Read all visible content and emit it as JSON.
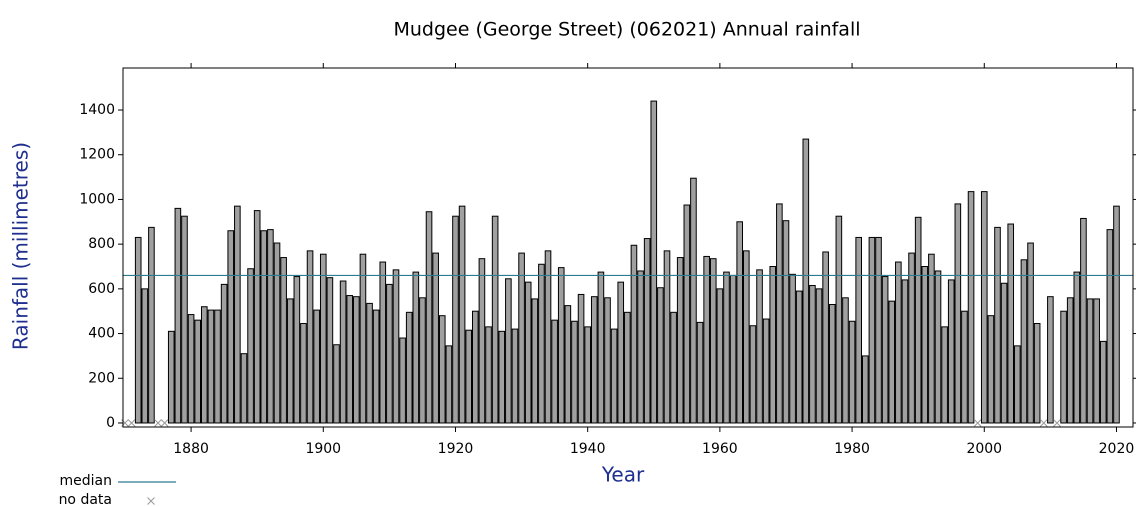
{
  "chart_data": {
    "type": "bar",
    "title": "Mudgee (George Street) (062021) Annual rainfall",
    "x_label": "Year",
    "y_label": "Rainfall (millimetres)",
    "x": [
      1870,
      1871,
      1872,
      1873,
      1874,
      1875,
      1876,
      1877,
      1878,
      1879,
      1880,
      1881,
      1882,
      1883,
      1884,
      1885,
      1886,
      1887,
      1888,
      1889,
      1890,
      1891,
      1892,
      1893,
      1894,
      1895,
      1896,
      1897,
      1898,
      1899,
      1900,
      1901,
      1902,
      1903,
      1904,
      1905,
      1906,
      1907,
      1908,
      1909,
      1910,
      1911,
      1912,
      1913,
      1914,
      1915,
      1916,
      1917,
      1918,
      1919,
      1920,
      1921,
      1922,
      1923,
      1924,
      1925,
      1926,
      1927,
      1928,
      1929,
      1930,
      1931,
      1932,
      1933,
      1934,
      1935,
      1936,
      1937,
      1938,
      1939,
      1940,
      1941,
      1942,
      1943,
      1944,
      1945,
      1946,
      1947,
      1948,
      1949,
      1950,
      1951,
      1952,
      1953,
      1954,
      1955,
      1956,
      1957,
      1958,
      1959,
      1960,
      1961,
      1962,
      1963,
      1964,
      1965,
      1966,
      1967,
      1968,
      1969,
      1970,
      1971,
      1972,
      1973,
      1974,
      1975,
      1976,
      1977,
      1978,
      1979,
      1980,
      1981,
      1982,
      1983,
      1984,
      1985,
      1986,
      1987,
      1988,
      1989,
      1990,
      1991,
      1992,
      1993,
      1994,
      1995,
      1996,
      1997,
      1998,
      1999,
      2000,
      2001,
      2002,
      2003,
      2004,
      2005,
      2006,
      2007,
      2008,
      2009,
      2010,
      2011,
      2012,
      2013,
      2014,
      2015,
      2016,
      2017,
      2018,
      2019,
      2020
    ],
    "values": [
      null,
      null,
      830,
      600,
      875,
      null,
      null,
      410,
      960,
      925,
      485,
      460,
      520,
      505,
      505,
      620,
      860,
      970,
      310,
      690,
      950,
      860,
      865,
      805,
      740,
      555,
      655,
      445,
      770,
      505,
      755,
      650,
      350,
      635,
      570,
      565,
      755,
      535,
      505,
      720,
      620,
      685,
      380,
      495,
      675,
      560,
      945,
      760,
      480,
      345,
      925,
      970,
      415,
      500,
      735,
      430,
      925,
      410,
      645,
      420,
      760,
      630,
      555,
      710,
      770,
      460,
      695,
      525,
      455,
      575,
      430,
      565,
      675,
      560,
      420,
      630,
      495,
      795,
      680,
      825,
      1440,
      605,
      770,
      495,
      740,
      975,
      1095,
      450,
      745,
      735,
      600,
      675,
      660,
      900,
      770,
      435,
      685,
      465,
      700,
      980,
      905,
      665,
      590,
      1270,
      615,
      600,
      765,
      530,
      925,
      560,
      455,
      830,
      300,
      830,
      830,
      655,
      545,
      720,
      640,
      760,
      920,
      700,
      755,
      680,
      430,
      640,
      980,
      500,
      1035,
      null,
      1035,
      480,
      875,
      625,
      890,
      345,
      730,
      805,
      445,
      null,
      565,
      null,
      500,
      560,
      675,
      915,
      555,
      555,
      365,
      865,
      970
    ],
    "color": "#a0a0a0",
    "median": {
      "name": "median",
      "value": 660,
      "color": "#2e7b8f"
    },
    "no_data": {
      "name": "no data",
      "color": "#999999"
    },
    "xlim": [
      1869.7,
      2022.5
    ],
    "xticks": [
      1880,
      1900,
      1920,
      1940,
      1960,
      1980,
      2000,
      2020
    ],
    "ylim": [
      -18,
      1588
    ],
    "yticks": [
      0,
      200,
      400,
      600,
      800,
      1000,
      1200,
      1400
    ]
  }
}
